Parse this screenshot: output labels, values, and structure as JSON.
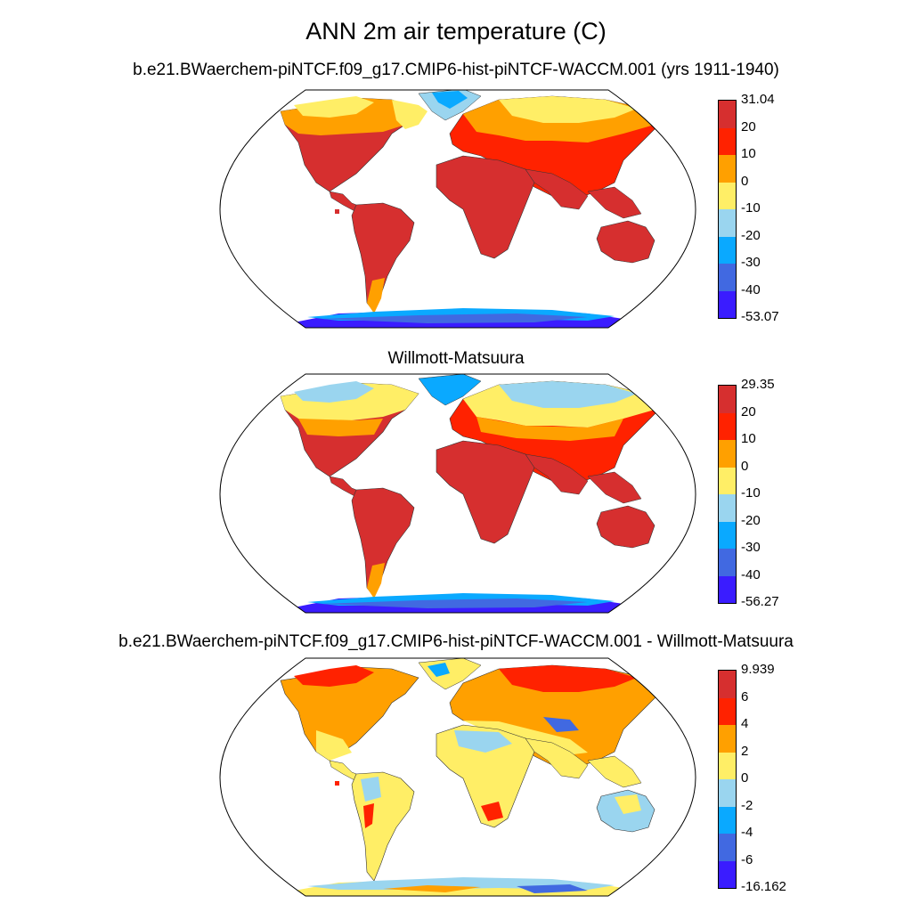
{
  "title": "ANN 2m air temperature (C)",
  "panels": [
    {
      "subtitle": "b.e21.BWaerchem-piNTCF.f09_g17.CMIP6-hist-piNTCF-WACCM.001 (yrs 1911-1940)",
      "colorbar": {
        "labels": [
          "31.04",
          "20",
          "10",
          "0",
          "-10",
          "-20",
          "-30",
          "-40",
          "-53.07"
        ],
        "colors": [
          "#d62f2f",
          "#ff2200",
          "#ffa000",
          "#ffee66",
          "#9ad5ef",
          "#0aa9ff",
          "#4169e1",
          "#3a1cff"
        ]
      }
    },
    {
      "subtitle": "Willmott-Matsuura",
      "colorbar": {
        "labels": [
          "29.35",
          "20",
          "10",
          "0",
          "-10",
          "-20",
          "-30",
          "-40",
          "-56.27"
        ],
        "colors": [
          "#d62f2f",
          "#ff2200",
          "#ffa000",
          "#ffee66",
          "#9ad5ef",
          "#0aa9ff",
          "#4169e1",
          "#3a1cff"
        ]
      }
    },
    {
      "subtitle": "b.e21.BWaerchem-piNTCF.f09_g17.CMIP6-hist-piNTCF-WACCM.001 - Willmott-Matsuura",
      "colorbar": {
        "labels": [
          "9.939",
          "6",
          "4",
          "2",
          "0",
          "-2",
          "-4",
          "-6",
          "-16.162"
        ],
        "colors": [
          "#d62f2f",
          "#ff2200",
          "#ffa000",
          "#ffee66",
          "#9ad5ef",
          "#0aa9ff",
          "#4169e1",
          "#3a1cff"
        ]
      }
    }
  ]
}
